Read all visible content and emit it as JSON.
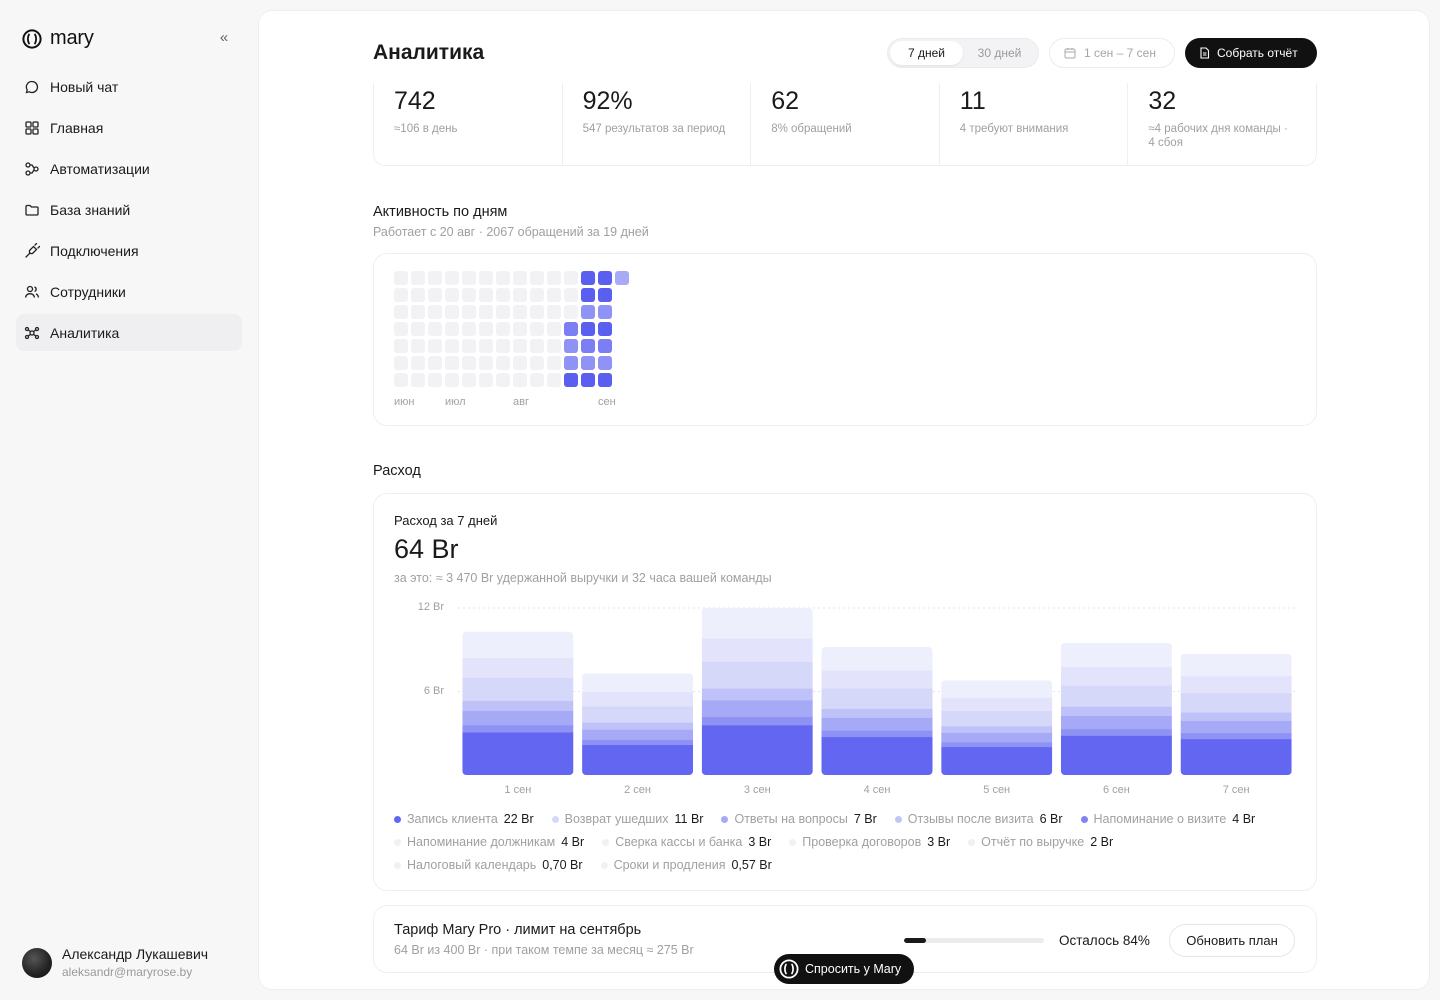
{
  "brand": {
    "name": "mary"
  },
  "sidebar": {
    "items": [
      {
        "label": "Новый чат",
        "icon": "chat-icon"
      },
      {
        "label": "Главная",
        "icon": "grid-icon"
      },
      {
        "label": "Автоматизации",
        "icon": "automation-icon"
      },
      {
        "label": "База знаний",
        "icon": "folder-icon"
      },
      {
        "label": "Подключения",
        "icon": "plug-icon"
      },
      {
        "label": "Сотрудники",
        "icon": "users-icon"
      },
      {
        "label": "Аналитика",
        "icon": "analytics-icon",
        "active": true
      }
    ]
  },
  "user": {
    "name": "Александр Лукашевич",
    "email": "aleksandr@maryrose.by"
  },
  "header": {
    "title": "Аналитика",
    "period_tabs": [
      {
        "label": "7 дней",
        "active": true
      },
      {
        "label": "30 дней",
        "active": false
      }
    ],
    "date_range": "1 сен – 7 сен",
    "report_button": "Собрать отчёт"
  },
  "kpis": [
    {
      "value": "742",
      "sub": "≈106 в день"
    },
    {
      "value": "92%",
      "sub": "547 результатов за период"
    },
    {
      "value": "62",
      "sub": "8% обращений"
    },
    {
      "value": "11",
      "sub": "4 требуют внимания"
    },
    {
      "value": "32",
      "sub": "≈4 рабочих дня команды · 4 сбоя"
    }
  ],
  "activity": {
    "title": "Активность по дням",
    "subtitle": "Работает с 20 авг · 2067 обращений за 19 дней",
    "months": [
      "июн",
      "июл",
      "авг",
      "сен"
    ]
  },
  "spend": {
    "section_title": "Расход",
    "card_title": "Расход за 7 дней",
    "total": "64 Br",
    "note": "за это: ≈ 3 470 Br удержанной выручки и 32 часа вашей команды"
  },
  "chart_data": {
    "type": "bar",
    "stacked": true,
    "categories": [
      "1 сен",
      "2 сен",
      "3 сен",
      "4 сен",
      "5 сен",
      "6 сен",
      "7 сен"
    ],
    "ytick_labels": [
      "12 Br",
      "6 Br"
    ],
    "ytick_values": [
      12,
      6
    ],
    "ylim": [
      0,
      12
    ],
    "totals": [
      10.3,
      7.3,
      12.0,
      9.2,
      6.8,
      9.5,
      8.7
    ],
    "layer_colors": [
      "#6366f1",
      "#8e92f4",
      "#a6aaf6",
      "#bfc2f8",
      "#d6d8fa",
      "#e3e4fb",
      "#eeeffd"
    ],
    "layer_fractions": [
      0.3,
      0.05,
      0.1,
      0.07,
      0.16,
      0.14,
      0.18
    ],
    "legend": [
      {
        "name": "Запись клиента",
        "value": "22 Br",
        "color": "#6366f1"
      },
      {
        "name": "Возврат ушедших",
        "value": "11 Br",
        "color": "#d6d8fa"
      },
      {
        "name": "Ответы на вопросы",
        "value": "7 Br",
        "color": "#a6aaf6"
      },
      {
        "name": "Отзывы после визита",
        "value": "6 Br",
        "color": "#c3c5f8"
      },
      {
        "name": "Напоминание о визите",
        "value": "4 Br",
        "color": "#8084f2"
      },
      {
        "name": "Напоминание должникам",
        "value": "4 Br",
        "color": "#f1f1f4"
      },
      {
        "name": "Сверка кассы и банка",
        "value": "3 Br",
        "color": "#f1f1f4"
      },
      {
        "name": "Проверка договоров",
        "value": "3 Br",
        "color": "#f1f1f4"
      },
      {
        "name": "Отчёт по выручке",
        "value": "2 Br",
        "color": "#f1f1f4"
      },
      {
        "name": "Налоговый календарь",
        "value": "0,70 Br",
        "color": "#f1f1f4"
      },
      {
        "name": "Сроки и продления",
        "value": "0,57 Br",
        "color": "#f1f1f4"
      }
    ]
  },
  "plan": {
    "title": "Тариф Mary Pro · лимит на сентябрь",
    "subtitle": "64 Br из 400 Br · при таком темпе за месяц ≈ 275 Br",
    "used_fraction": 0.16,
    "remaining": "Осталось 84%",
    "upgrade_button": "Обновить план"
  },
  "ask_button": "Спросить у Mary"
}
